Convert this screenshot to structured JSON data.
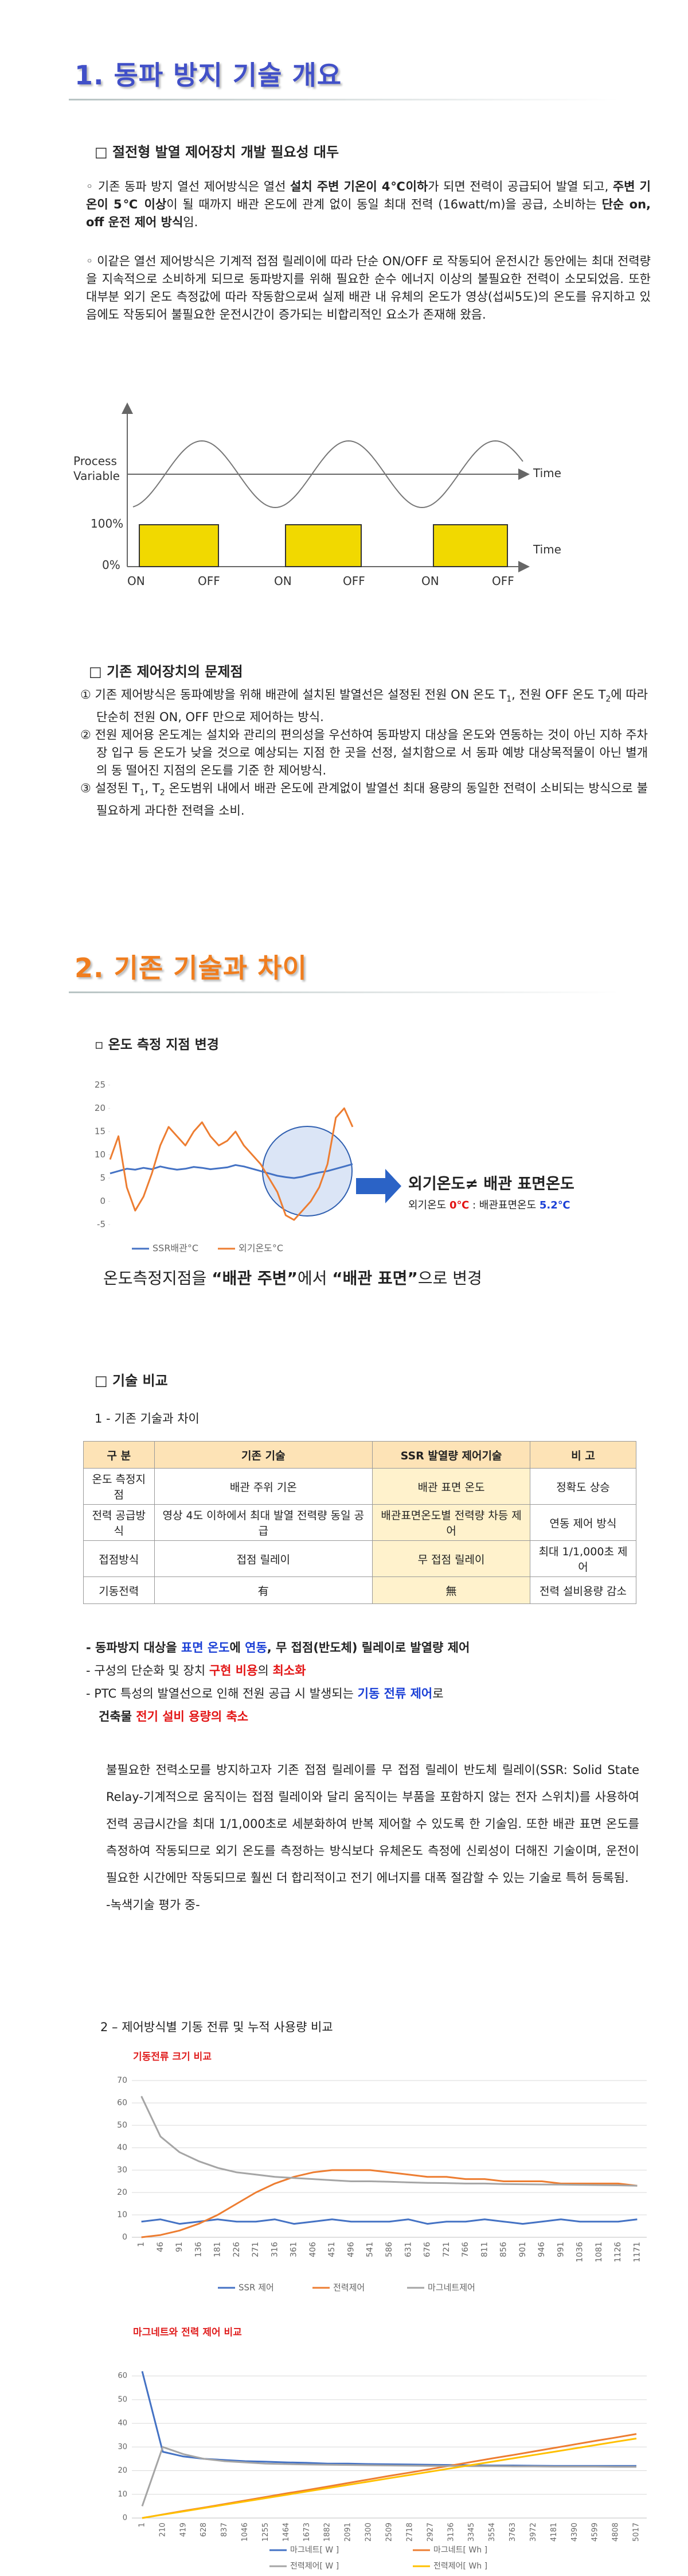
{
  "section1": {
    "title": "1. 동파 방지 기술 개요",
    "heading": "□ 절전형 발열 제어장치 개발 필요성 대두",
    "bullet1": [
      "◦ 기존 동파 방지 열선 제어방식은 열선 ",
      "설치 주변 기온이 4℃이하",
      "가 되면 전력이 공급되어 발열 되고, ",
      "주변 기온이 5℃ 이상",
      "이 될 때까지 배관 온도에 관계 없이 동일 최대 전력 (16watt/m)을 공급, 소비하는 ",
      "단순 on, off 운전 제어 방식",
      "임."
    ],
    "bullet2": "◦ 이같은 열선 제어방식은 기계적 접점 릴레이에 따라 단순 ON/OFF 로 작동되어 운전시간 동안에는 최대 전력량을 지속적으로 소비하게 되므로 동파방지를 위해 필요한 순수 에너지 이상의 불필요한 전력이 소모되었음. 또한 대부분 외기 온도 측정값에 따라 작동함으로써 실제 배관 내 유체의 온도가 영상(섭씨5도)의 온도를 유지하고 있음에도 작동되어 불필요한 운전시간이 증가되는 비합리적인 요소가 존재해 왔음.",
    "diagram": {
      "y_label": "Process Variable",
      "time_labels": [
        "Time",
        "Time"
      ],
      "levels": [
        "100%",
        "0%"
      ],
      "states": [
        "ON",
        "OFF",
        "ON",
        "OFF",
        "ON",
        "OFF"
      ]
    },
    "problems_heading": "□ 기존 제어장치의 문제점",
    "problems": [
      [
        "① 기존 제어방식은 동파예방을 위해 배관에 설치된 발열선은 설정된 전원 ON 온도 T",
        "1",
        ", 전원 OFF 온도 T",
        "2",
        "에 따라 단순히 전원 ON, OFF 만으로 제어하는 방식."
      ],
      [
        "② 전원 제어용 온도계는 설치와 관리의 편의성을 우선하여 동파방지 대상을 온도와 연동하는 것이 아닌 지하 주차장 입구 등 온도가 낮을 것으로 예상되는 지점 한 곳을 선정, 설치함으로 서 동파 예방 대상목적물이 아닌 별개의 동 떨어진 지점의 온도를 기준 한 제어방식."
      ],
      [
        "③ 설정된 T",
        "1",
        ", T",
        "2",
        " 온도범위 내에서 배관 온도에 관계없이 발열선 최대 용량의 동일한 전력이 소비되는 방식으로 불필요하게 과다한 전력을 소비."
      ]
    ]
  },
  "section2": {
    "title": "2. 기존 기술과 차이",
    "measure_heading": "▫ 온도 측정 지점 변경",
    "annotation": "외기온도≠ 배관 표면온도",
    "annotation_detail": [
      "외기온도 ",
      "0℃",
      " : 배관표면온도 ",
      "5.2℃"
    ],
    "change": [
      "온도측정지점을 ",
      "“배관 주변”",
      "에서 ",
      "“배관 표면”",
      "으로  변경"
    ],
    "compare_heading": "□ 기술 비교",
    "compare_sub": "1 - 기존 기술과 차이",
    "table": {
      "header": [
        "구 분",
        "기존 기술",
        "SSR 발열량 제어기술",
        "비 고"
      ],
      "rows": [
        [
          "온도 측정지점",
          "배관 주위 기온",
          "배관 표면 온도",
          "정확도 상승"
        ],
        [
          "전력 공급방식",
          "영상 4도 이하에서 최대 발열 전력량 동일 공급",
          "배관표면온도별 전력량 차등 제어",
          "연동 제어 방식"
        ],
        [
          "접점방식",
          "접점 릴레이",
          "무 접점 릴레이",
          "최대 1/1,000초 제어"
        ],
        [
          "기동전력",
          "有",
          "無",
          "전력 설비용량 감소"
        ]
      ]
    },
    "bullets": [
      [
        "- 동파방지 대상을 ",
        "표면 온도",
        "에 ",
        "연동",
        ", 무 접점(반도체) 릴레이로 발열량 제어"
      ],
      [
        "- 구성의 단순화 및 장치 ",
        "구현 비용",
        "의 ",
        "최소화"
      ],
      [
        "- PTC 특성의 발열선으로 인해 전원 공급 시 발생되는 ",
        "기동 전류 제어",
        "로"
      ],
      [
        "건축물 ",
        "전기 설비 용량의 축소"
      ]
    ],
    "paragraph": "불필요한 전력소모를 방지하고자 기존 접점 릴레이를 무 접점 릴레이 반도체 릴레이(SSR: Solid State Relay-기계적으로 움직이는 접점 릴레이와 달리 움직이는 부품을 포함하지 않는 전자 스위치)를 사용하여 전력 공급시간을 최대 1/1,000초로 세분화하여 반복 제어할 수 있도록 한 기술임. 또한 배관 표면 온도를 측정하여 작동되므로 외기 온도를 측정하는 방식보다 유체온도 측정에 신뢰성이 더해진 기술이며, 운전이 필요한 시간에만 작동되므로 훨씬 더 합리적이고 전기 에너지를 대폭 절감할 수 있는 기술로 특허 등록됨.",
    "paragraph_note": "-녹색기술 평가 중-",
    "charts_heading": "2 – 제어방식별 기동 전류 및 누적 사용량 비교"
  },
  "chart_data": [
    {
      "type": "line",
      "ylim": [
        -5,
        25
      ],
      "yticks": [
        -5,
        0,
        5,
        10,
        15,
        20,
        25
      ],
      "grid": false,
      "series": [
        {
          "name": "SSR배관°C",
          "color": "#4472c4",
          "values": [
            6,
            6.5,
            7,
            6.8,
            7.2,
            6.9,
            7.5,
            7.1,
            6.8,
            7,
            7.4,
            7.2,
            6.9,
            7.1,
            7.3,
            7.8,
            7.5,
            7,
            6.5,
            6,
            5.5,
            5.2,
            5,
            5.3,
            5.8,
            6.2,
            6.5,
            7,
            7.5,
            8
          ]
        },
        {
          "name": "외기온도°C",
          "color": "#ed7d31",
          "values": [
            9,
            14,
            3,
            -2,
            1,
            6,
            12,
            16,
            14,
            12,
            15,
            17,
            14,
            12,
            13,
            15,
            12,
            10,
            8,
            5,
            2,
            -3,
            -4,
            -2,
            0,
            3,
            8,
            18,
            20,
            16
          ]
        }
      ]
    },
    {
      "type": "line",
      "title": "기동전류 크기 비교",
      "ylim": [
        0,
        70
      ],
      "yticks": [
        0,
        10,
        20,
        30,
        40,
        50,
        60,
        70
      ],
      "grid": true,
      "categories": [
        "1",
        "46",
        "91",
        "136",
        "181",
        "226",
        "271",
        "316",
        "361",
        "406",
        "451",
        "496",
        "541",
        "586",
        "631",
        "676",
        "721",
        "766",
        "811",
        "856",
        "901",
        "946",
        "991",
        "1036",
        "1081",
        "1126",
        "1171"
      ],
      "series": [
        {
          "name": "SSR 제어",
          "color": "#4472c4",
          "values": [
            7,
            8,
            6,
            7,
            8,
            7,
            7,
            8,
            6,
            7,
            8,
            7,
            7,
            7,
            8,
            6,
            7,
            7,
            8,
            7,
            6,
            7,
            8,
            7,
            7,
            7,
            8
          ]
        },
        {
          "name": "전력제어",
          "color": "#ed7d31",
          "values": [
            0,
            1,
            3,
            6,
            10,
            15,
            20,
            24,
            27,
            29,
            30,
            30,
            30,
            29,
            28,
            27,
            27,
            26,
            26,
            25,
            25,
            25,
            24,
            24,
            24,
            24,
            23
          ]
        },
        {
          "name": "마그네트제어",
          "color": "#a5a5a5",
          "values": [
            63,
            45,
            38,
            34,
            31,
            29,
            28,
            27,
            26.5,
            26,
            25.5,
            25,
            25,
            24.8,
            24.5,
            24.3,
            24.2,
            24,
            24,
            23.8,
            23.7,
            23.6,
            23.5,
            23.4,
            23.3,
            23.2,
            23
          ]
        }
      ]
    },
    {
      "type": "line",
      "title": "마그네트와 전력 제어 비교",
      "ylim": [
        0,
        65
      ],
      "yticks": [
        0,
        10,
        20,
        30,
        40,
        50,
        60
      ],
      "grid": true,
      "categories": [
        "1",
        "210",
        "419",
        "628",
        "837",
        "1046",
        "1255",
        "1464",
        "1673",
        "1882",
        "2091",
        "2300",
        "2509",
        "2718",
        "2927",
        "3136",
        "3345",
        "3554",
        "3763",
        "3972",
        "4181",
        "4390",
        "4599",
        "4808",
        "5017"
      ],
      "series": [
        {
          "name": "마그네트[ W ]",
          "color": "#4472c4",
          "values": [
            62,
            28,
            26,
            25,
            24.5,
            24,
            23.8,
            23.5,
            23.3,
            23,
            23,
            22.8,
            22.7,
            22.6,
            22.5,
            22.4,
            22.3,
            22.2,
            22.2,
            22.1,
            22,
            22,
            22,
            22,
            22
          ]
        },
        {
          "name": "마그네트[ Wh ]",
          "color": "#ed7d31",
          "values": [
            0,
            1.5,
            3,
            4.4,
            5.9,
            7.4,
            8.9,
            10.4,
            11.8,
            13.3,
            14.8,
            16.3,
            17.8,
            19.2,
            20.7,
            22.2,
            23.7,
            25.2,
            26.6,
            28.1,
            29.6,
            31.1,
            32.6,
            34,
            35.5
          ]
        },
        {
          "name": "전력제어[ W ]",
          "color": "#a5a5a5",
          "values": [
            5,
            30,
            27,
            25,
            24,
            23.5,
            23,
            22.8,
            22.6,
            22.5,
            22.4,
            22.3,
            22.2,
            22.1,
            22,
            22,
            21.9,
            21.9,
            21.8,
            21.8,
            21.7,
            21.7,
            21.7,
            21.6,
            21.6
          ]
        },
        {
          "name": "전력제어[ Wh ]",
          "color": "#ffc000",
          "values": [
            0,
            1.4,
            2.8,
            4.2,
            5.6,
            7,
            8.4,
            9.8,
            11.2,
            12.6,
            14,
            15.4,
            16.8,
            18.2,
            19.6,
            21,
            22.4,
            23.8,
            25.2,
            26.6,
            28,
            29.4,
            30.8,
            32.2,
            33.6
          ]
        }
      ]
    }
  ]
}
